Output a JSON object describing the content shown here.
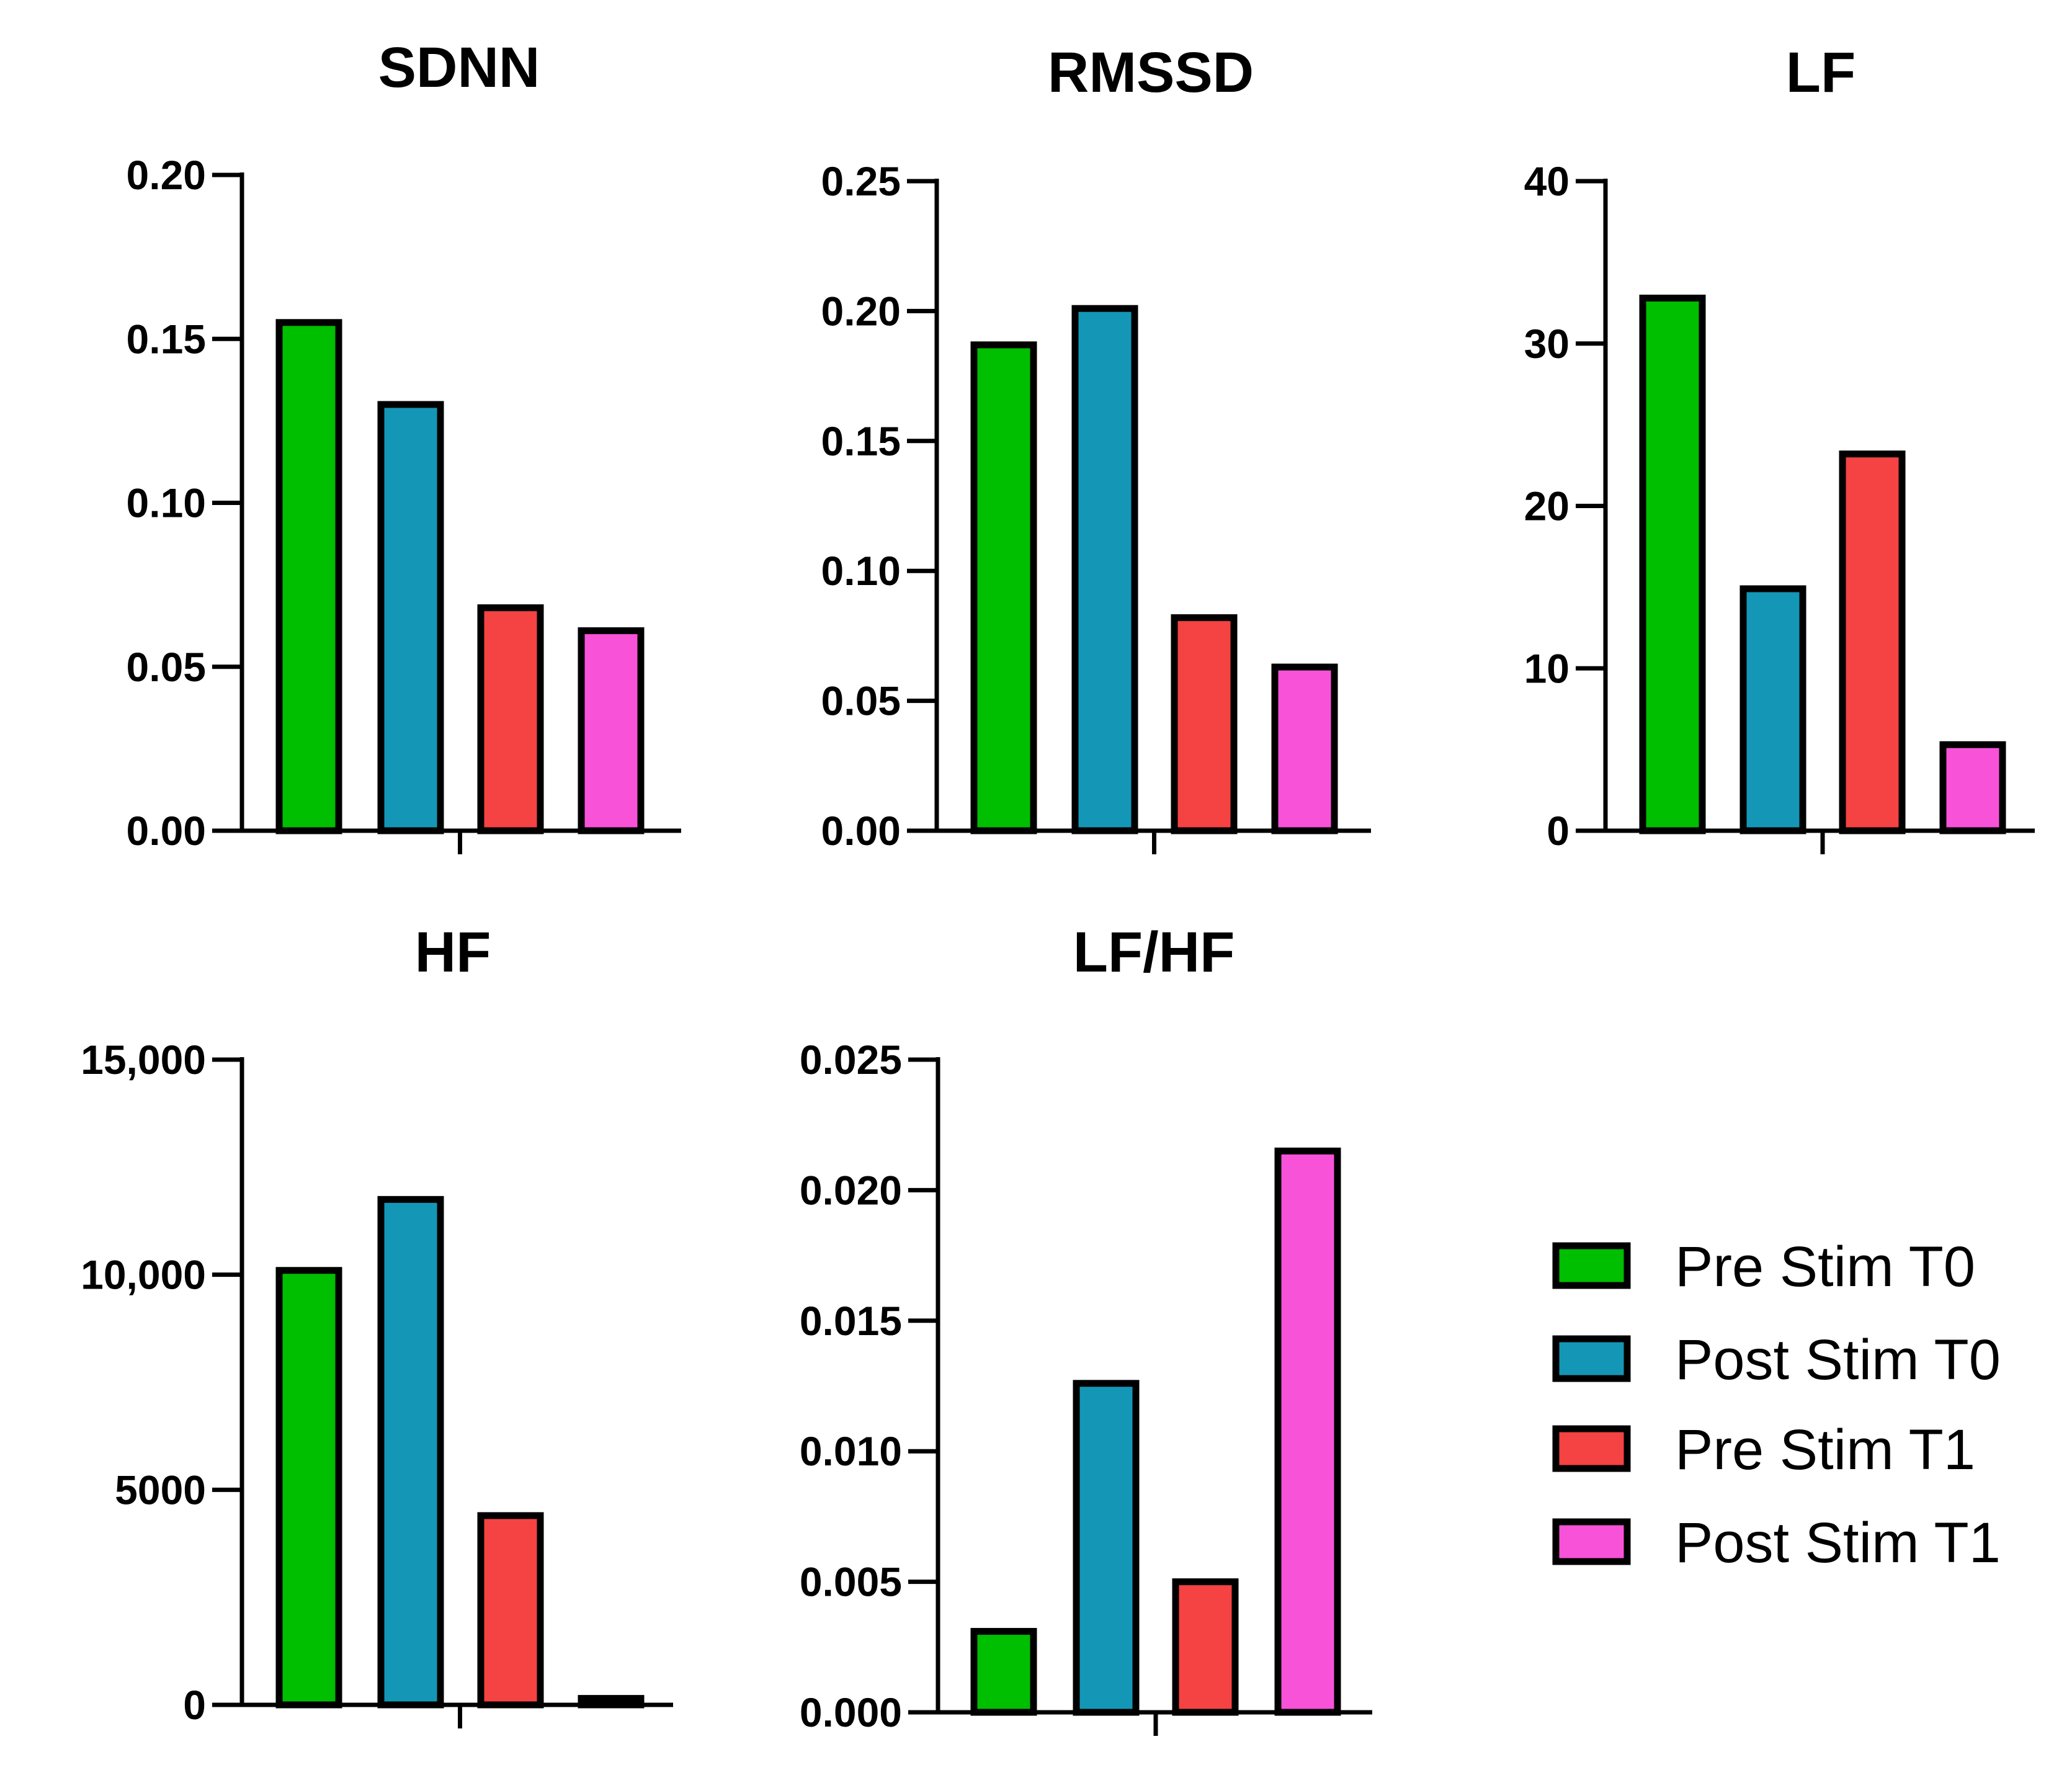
{
  "chart_data": [
    {
      "type": "bar",
      "title": "SDNN",
      "categories": [
        "Pre Stim T0",
        "Post Stim T0",
        "Pre Stim T1",
        "Post Stim T1"
      ],
      "values": [
        0.155,
        0.13,
        0.068,
        0.061
      ],
      "ylim": [
        0,
        0.2
      ],
      "yticks": [
        0.0,
        0.05,
        0.1,
        0.15,
        0.2
      ],
      "ytick_labels": [
        "0.00",
        "0.05",
        "0.10",
        "0.15",
        "0.20"
      ]
    },
    {
      "type": "bar",
      "title": "RMSSD",
      "categories": [
        "Pre Stim T0",
        "Post Stim T0",
        "Pre Stim T1",
        "Post Stim T1"
      ],
      "values": [
        0.187,
        0.201,
        0.082,
        0.063
      ],
      "ylim": [
        0,
        0.25
      ],
      "yticks": [
        0.0,
        0.05,
        0.1,
        0.15,
        0.2,
        0.25
      ],
      "ytick_labels": [
        "0.00",
        "0.05",
        "0.10",
        "0.15",
        "0.20",
        "0.25"
      ]
    },
    {
      "type": "bar",
      "title": "LF",
      "categories": [
        "Pre Stim T0",
        "Post Stim T0",
        "Pre Stim T1",
        "Post Stim T1"
      ],
      "values": [
        32.8,
        14.9,
        23.2,
        5.3
      ],
      "ylim": [
        0,
        40
      ],
      "yticks": [
        0,
        10,
        20,
        30,
        40
      ],
      "ytick_labels": [
        "0",
        "10",
        "20",
        "30",
        "40"
      ]
    },
    {
      "type": "bar",
      "title": "HF",
      "categories": [
        "Pre Stim T0",
        "Post Stim T0",
        "Pre Stim T1",
        "Post Stim T1"
      ],
      "values": [
        10100,
        11750,
        4400,
        150
      ],
      "ylim": [
        0,
        15000
      ],
      "yticks": [
        0,
        5000,
        10000,
        15000
      ],
      "ytick_labels": [
        "0",
        "5000",
        "10,000",
        "15,000"
      ]
    },
    {
      "type": "bar",
      "title": "LF/HF",
      "categories": [
        "Pre Stim T0",
        "Post Stim T0",
        "Pre Stim T1",
        "Post Stim T1"
      ],
      "values": [
        0.0031,
        0.0126,
        0.005,
        0.0215
      ],
      "ylim": [
        0,
        0.025
      ],
      "yticks": [
        0.0,
        0.005,
        0.01,
        0.015,
        0.02,
        0.025
      ],
      "ytick_labels": [
        "0.000",
        "0.005",
        "0.010",
        "0.015",
        "0.020",
        "0.025"
      ]
    }
  ],
  "legend": {
    "placement": "bottom-right",
    "entries": [
      {
        "label": "Pre Stim T0",
        "color": "#00BE00"
      },
      {
        "label": "Post Stim T0",
        "color": "#1497B6"
      },
      {
        "label": "Pre Stim T1",
        "color": "#F54242"
      },
      {
        "label": "Post Stim T1",
        "color": "#F752D8"
      }
    ]
  }
}
